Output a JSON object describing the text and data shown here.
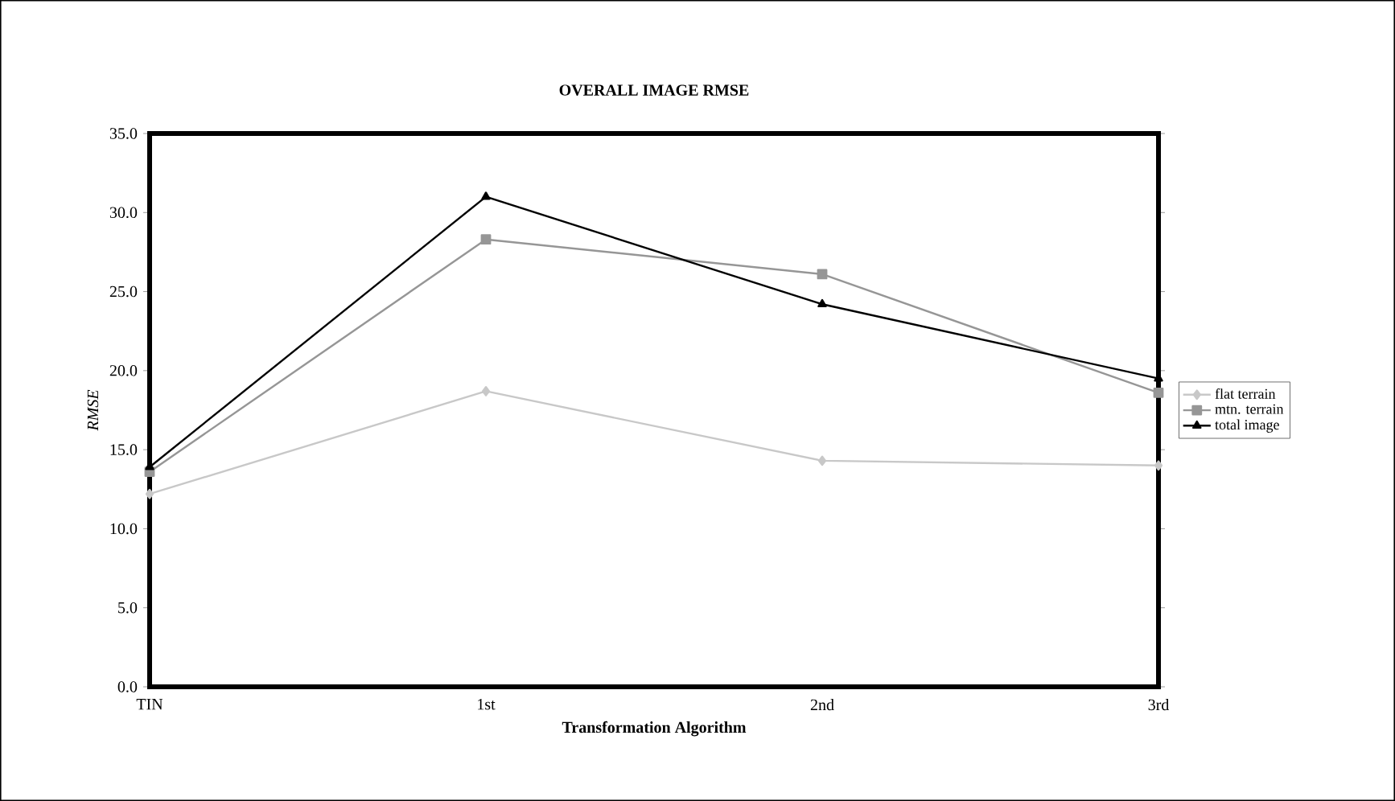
{
  "chart_data": {
    "type": "line",
    "title": "OVERALL IMAGE RMSE",
    "xlabel": "Transformation Algorithm",
    "ylabel": "RMSE",
    "categories": [
      "TIN",
      "1st",
      "2nd",
      "3rd"
    ],
    "series": [
      {
        "name": "flat terrain",
        "color": "#c8c8c8",
        "marker": "diamond",
        "values": [
          12.2,
          18.7,
          14.3,
          14.0
        ]
      },
      {
        "name": "mtn. terrain",
        "color": "#969696",
        "marker": "square",
        "values": [
          13.6,
          28.3,
          26.1,
          18.6
        ]
      },
      {
        "name": "total image",
        "color": "#000000",
        "marker": "triangle",
        "values": [
          13.9,
          31.0,
          24.2,
          19.5
        ]
      }
    ],
    "ylim": [
      0,
      35
    ],
    "yticks": [
      {
        "value": 0,
        "label": "0.0"
      },
      {
        "value": 5,
        "label": "5.0"
      },
      {
        "value": 10,
        "label": "10.0"
      },
      {
        "value": 15,
        "label": "15.0"
      },
      {
        "value": 20,
        "label": "20.0"
      },
      {
        "value": 25,
        "label": "25.0"
      },
      {
        "value": 30,
        "label": "30.0"
      },
      {
        "value": 35,
        "label": "35.0"
      }
    ],
    "legend": "right",
    "line_style": "solid"
  }
}
